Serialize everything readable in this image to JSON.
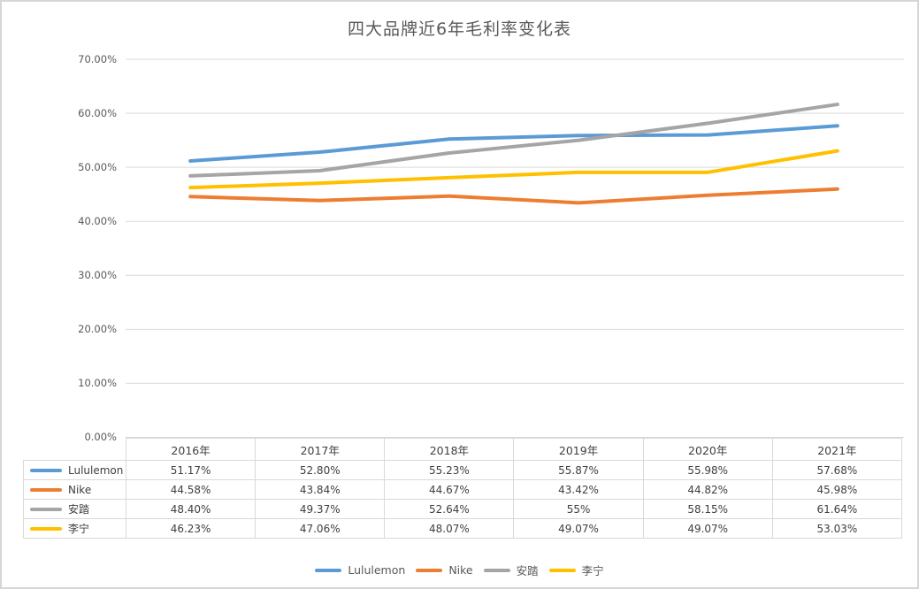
{
  "page": {
    "title": "四大品牌近6年毛利率变化表"
  },
  "chart_data": {
    "type": "line",
    "title": "四大品牌近6年毛利率变化表",
    "categories": [
      "2016年",
      "2017年",
      "2018年",
      "2019年",
      "2020年",
      "2021年"
    ],
    "series": [
      {
        "name": "Lululemon",
        "color": "#5B9BD5",
        "values": [
          51.17,
          52.8,
          55.23,
          55.87,
          55.98,
          57.68
        ]
      },
      {
        "name": "Nike",
        "color": "#ED7D31",
        "values": [
          44.58,
          43.84,
          44.67,
          43.42,
          44.82,
          45.98
        ]
      },
      {
        "name": "安踏",
        "color": "#A5A5A5",
        "values": [
          48.4,
          49.37,
          52.64,
          55.0,
          58.15,
          61.64
        ]
      },
      {
        "name": "李宁",
        "color": "#FFC000",
        "values": [
          46.23,
          47.06,
          48.07,
          49.07,
          49.07,
          53.03
        ]
      }
    ],
    "ylabel": "",
    "xlabel": "",
    "ylim": [
      0,
      70
    ],
    "y_ticks": [
      "70.00%",
      "60.00%",
      "50.00%",
      "40.00%",
      "30.00%",
      "20.00%",
      "10.00%",
      "0.00%"
    ],
    "grid": true,
    "gridline_color": "#d9d9d9",
    "legend_position": "bottom"
  },
  "table": {
    "col_headers": [
      "2016年",
      "2017年",
      "2018年",
      "2019年",
      "2020年",
      "2021年"
    ],
    "rows": [
      {
        "name": "Lululemon",
        "cells": [
          "51.17%",
          "52.80%",
          "55.23%",
          "55.87%",
          "55.98%",
          "57.68%"
        ]
      },
      {
        "name": "Nike",
        "cells": [
          "44.58%",
          "43.84%",
          "44.67%",
          "43.42%",
          "44.82%",
          "45.98%"
        ]
      },
      {
        "name": "安踏",
        "cells": [
          "48.40%",
          "49.37%",
          "52.64%",
          "55%",
          "58.15%",
          "61.64%"
        ]
      },
      {
        "name": "李宁",
        "cells": [
          "46.23%",
          "47.06%",
          "48.07%",
          "49.07%",
          "49.07%",
          "53.03%"
        ]
      }
    ]
  },
  "legend": {
    "items": [
      {
        "label": "Lululemon",
        "color": "#5B9BD5"
      },
      {
        "label": "Nike",
        "color": "#ED7D31"
      },
      {
        "label": "安踏",
        "color": "#A5A5A5"
      },
      {
        "label": "李宁",
        "color": "#FFC000"
      }
    ]
  }
}
